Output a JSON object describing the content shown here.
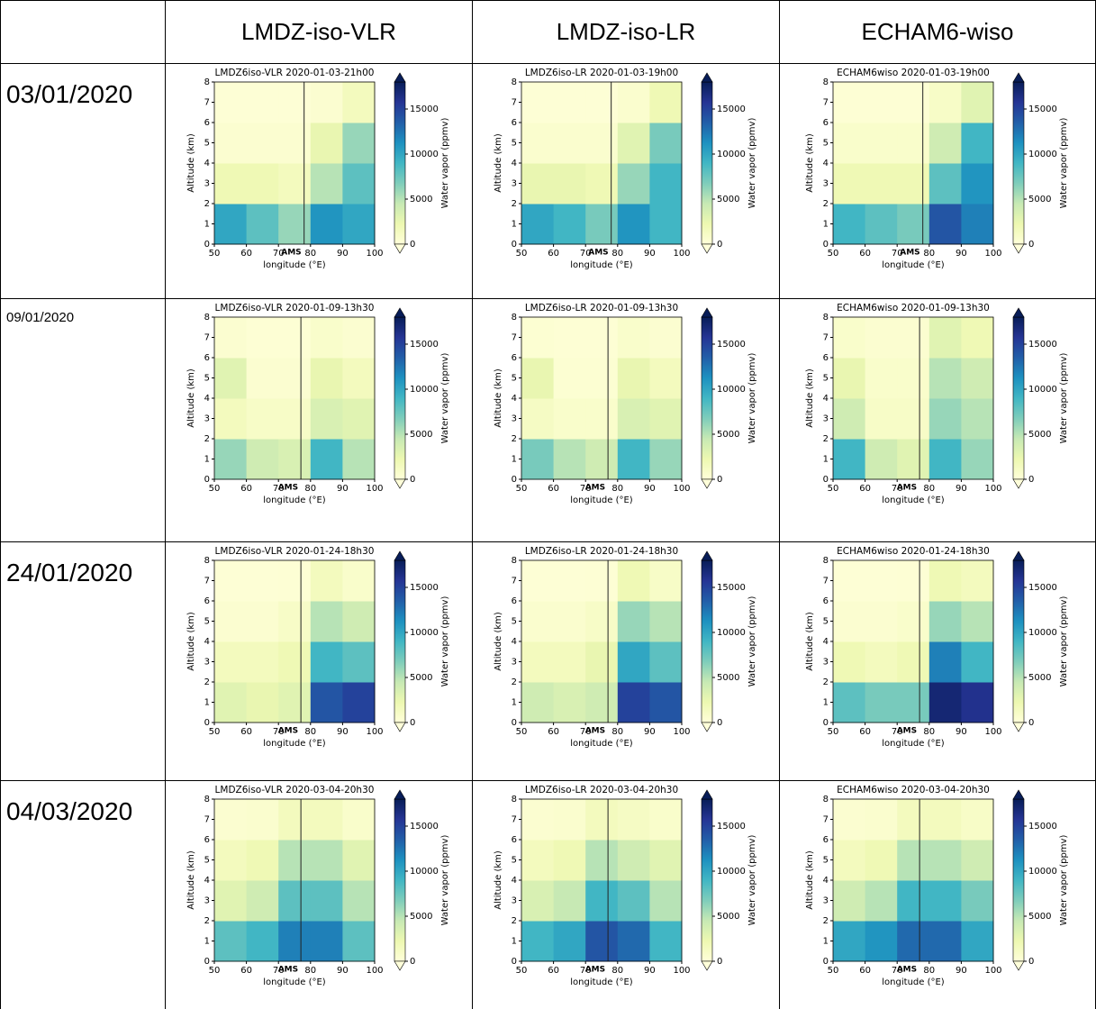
{
  "table": {
    "column_headers": [
      "LMDZ-iso-VLR",
      "LMDZ-iso-LR",
      "ECHAM6-wiso"
    ],
    "row_labels": [
      "03/01/2020",
      "09/01/2020",
      "24/01/2020",
      "04/03/2020"
    ]
  },
  "chart_data": [
    {
      "type": "heatmap",
      "title": "LMDZ6iso-VLR 2020-01-03-21h00",
      "xlabel": "longitude (°E)",
      "ylabel": "Altitude (km)",
      "colorbar_label": "Water vapor (ppmv)",
      "colormap": "YlGnBu",
      "annotation": "AMS",
      "annotation_x": 78,
      "xlim": [
        50,
        100
      ],
      "xticks": [
        50,
        60,
        70,
        80,
        90,
        100
      ],
      "ylim": [
        0,
        8
      ],
      "yticks": [
        0,
        1,
        2,
        3,
        4,
        5,
        6,
        7,
        8
      ],
      "clim": [
        0,
        18000
      ],
      "cticks": [
        0,
        5000,
        10000,
        15000
      ],
      "z": [
        [
          10000,
          8000,
          6000,
          11000,
          10000
        ],
        [
          2000,
          2000,
          1500,
          5000,
          8000
        ],
        [
          500,
          500,
          500,
          2500,
          6000
        ],
        [
          200,
          200,
          200,
          500,
          1500
        ]
      ]
    },
    {
      "type": "heatmap",
      "title": "LMDZ6iso-LR 2020-01-03-19h00",
      "xlabel": "longitude (°E)",
      "ylabel": "Altitude (km)",
      "colorbar_label": "Water vapor (ppmv)",
      "colormap": "YlGnBu",
      "annotation": "AMS",
      "annotation_x": 78,
      "xlim": [
        50,
        100
      ],
      "xticks": [
        50,
        60,
        70,
        80,
        90,
        100
      ],
      "ylim": [
        0,
        8
      ],
      "yticks": [
        0,
        1,
        2,
        3,
        4,
        5,
        6,
        7,
        8
      ],
      "clim": [
        0,
        18000
      ],
      "cticks": [
        0,
        5000,
        10000,
        15000
      ],
      "z": [
        [
          10000,
          9000,
          7000,
          11000,
          9000
        ],
        [
          2500,
          2500,
          2000,
          6000,
          9000
        ],
        [
          600,
          600,
          600,
          3000,
          7000
        ],
        [
          200,
          200,
          200,
          600,
          2000
        ]
      ]
    },
    {
      "type": "heatmap",
      "title": "ECHAM6wiso 2020-01-03-19h00",
      "xlabel": "longitude (°E)",
      "ylabel": "Altitude (km)",
      "colorbar_label": "Water vapor (ppmv)",
      "colormap": "YlGnBu",
      "annotation": "AMS",
      "annotation_x": 78,
      "xlim": [
        50,
        100
      ],
      "xticks": [
        50,
        60,
        70,
        80,
        90,
        100
      ],
      "ylim": [
        0,
        8
      ],
      "yticks": [
        0,
        1,
        2,
        3,
        4,
        5,
        6,
        7,
        8
      ],
      "clim": [
        0,
        18000
      ],
      "cticks": [
        0,
        5000,
        10000,
        15000
      ],
      "z": [
        [
          9000,
          8000,
          7000,
          14000,
          12000
        ],
        [
          2000,
          2000,
          2000,
          8000,
          11000
        ],
        [
          800,
          800,
          800,
          4000,
          9000
        ],
        [
          300,
          300,
          300,
          1000,
          3000
        ]
      ]
    },
    {
      "type": "heatmap",
      "title": "LMDZ6iso-VLR 2020-01-09-13h30",
      "xlabel": "longitude (°E)",
      "ylabel": "Altitude (km)",
      "colorbar_label": "Water vapor (ppmv)",
      "colormap": "YlGnBu",
      "annotation": "AMS",
      "annotation_x": 77,
      "xlim": [
        50,
        100
      ],
      "xticks": [
        50,
        60,
        70,
        80,
        90,
        100
      ],
      "ylim": [
        0,
        8
      ],
      "yticks": [
        0,
        1,
        2,
        3,
        4,
        5,
        6,
        7,
        8
      ],
      "clim": [
        0,
        18000
      ],
      "cticks": [
        0,
        5000,
        10000,
        15000
      ],
      "z": [
        [
          6000,
          4000,
          3500,
          9000,
          5000
        ],
        [
          1500,
          1000,
          1000,
          3500,
          3000
        ],
        [
          3000,
          500,
          500,
          2500,
          1500
        ],
        [
          500,
          300,
          300,
          800,
          500
        ]
      ]
    },
    {
      "type": "heatmap",
      "title": "LMDZ6iso-LR 2020-01-09-13h30",
      "xlabel": "longitude (°E)",
      "ylabel": "Altitude (km)",
      "colorbar_label": "Water vapor (ppmv)",
      "colormap": "YlGnBu",
      "annotation": "AMS",
      "annotation_x": 77,
      "xlim": [
        50,
        100
      ],
      "xticks": [
        50,
        60,
        70,
        80,
        90,
        100
      ],
      "ylim": [
        0,
        8
      ],
      "yticks": [
        0,
        1,
        2,
        3,
        4,
        5,
        6,
        7,
        8
      ],
      "clim": [
        0,
        18000
      ],
      "cticks": [
        0,
        5000,
        10000,
        15000
      ],
      "z": [
        [
          7000,
          5000,
          4000,
          9000,
          6000
        ],
        [
          1200,
          800,
          800,
          3500,
          3000
        ],
        [
          2500,
          400,
          400,
          2500,
          1500
        ],
        [
          400,
          300,
          300,
          800,
          500
        ]
      ]
    },
    {
      "type": "heatmap",
      "title": "ECHAM6wiso 2020-01-09-13h30",
      "xlabel": "longitude (°E)",
      "ylabel": "Altitude (km)",
      "colorbar_label": "Water vapor (ppmv)",
      "colormap": "YlGnBu",
      "annotation": "AMS",
      "annotation_x": 77,
      "xlim": [
        50,
        100
      ],
      "xticks": [
        50,
        60,
        70,
        80,
        90,
        100
      ],
      "ylim": [
        0,
        8
      ],
      "yticks": [
        0,
        1,
        2,
        3,
        4,
        5,
        6,
        7,
        8
      ],
      "clim": [
        0,
        18000
      ],
      "cticks": [
        0,
        5000,
        10000,
        15000
      ],
      "z": [
        [
          9000,
          4000,
          3000,
          9000,
          6000
        ],
        [
          4000,
          1000,
          1000,
          6000,
          5000
        ],
        [
          2500,
          800,
          800,
          5000,
          4000
        ],
        [
          800,
          500,
          500,
          3000,
          2000
        ]
      ]
    },
    {
      "type": "heatmap",
      "title": "LMDZ6iso-VLR 2020-01-24-18h30",
      "xlabel": "longitude (°E)",
      "ylabel": "Altitude (km)",
      "colorbar_label": "Water vapor (ppmv)",
      "colormap": "YlGnBu",
      "annotation": "AMS",
      "annotation_x": 77,
      "xlim": [
        50,
        100
      ],
      "xticks": [
        50,
        60,
        70,
        80,
        90,
        100
      ],
      "ylim": [
        0,
        8
      ],
      "yticks": [
        0,
        1,
        2,
        3,
        4,
        5,
        6,
        7,
        8
      ],
      "clim": [
        0,
        18000
      ],
      "cticks": [
        0,
        5000,
        10000,
        15000
      ],
      "z": [
        [
          3000,
          2500,
          3000,
          14000,
          15000
        ],
        [
          1500,
          1500,
          2000,
          9000,
          8000
        ],
        [
          500,
          500,
          1000,
          5000,
          4000
        ],
        [
          200,
          200,
          300,
          1500,
          800
        ]
      ]
    },
    {
      "type": "heatmap",
      "title": "LMDZ6iso-LR 2020-01-24-18h30",
      "xlabel": "longitude (°E)",
      "ylabel": "Altitude (km)",
      "colorbar_label": "Water vapor (ppmv)",
      "colormap": "YlGnBu",
      "annotation": "AMS",
      "annotation_x": 77,
      "xlim": [
        50,
        100
      ],
      "xticks": [
        50,
        60,
        70,
        80,
        90,
        100
      ],
      "ylim": [
        0,
        8
      ],
      "yticks": [
        0,
        1,
        2,
        3,
        4,
        5,
        6,
        7,
        8
      ],
      "clim": [
        0,
        18000
      ],
      "cticks": [
        0,
        5000,
        10000,
        15000
      ],
      "z": [
        [
          4000,
          3500,
          4000,
          15000,
          14000
        ],
        [
          1500,
          1500,
          2500,
          10000,
          8000
        ],
        [
          600,
          600,
          1000,
          6000,
          5000
        ],
        [
          200,
          200,
          300,
          2000,
          1000
        ]
      ]
    },
    {
      "type": "heatmap",
      "title": "ECHAM6wiso 2020-01-24-18h30",
      "xlabel": "longitude (°E)",
      "ylabel": "Altitude (km)",
      "colorbar_label": "Water vapor (ppmv)",
      "colormap": "YlGnBu",
      "annotation": "AMS",
      "annotation_x": 77,
      "xlim": [
        50,
        100
      ],
      "xticks": [
        50,
        60,
        70,
        80,
        90,
        100
      ],
      "ylim": [
        0,
        8
      ],
      "yticks": [
        0,
        1,
        2,
        3,
        4,
        5,
        6,
        7,
        8
      ],
      "clim": [
        0,
        18000
      ],
      "cticks": [
        0,
        5000,
        10000,
        15000
      ],
      "z": [
        [
          8000,
          7000,
          7000,
          17000,
          16000
        ],
        [
          2000,
          1500,
          2000,
          12000,
          9000
        ],
        [
          500,
          500,
          800,
          6000,
          5000
        ],
        [
          200,
          200,
          300,
          2000,
          1500
        ]
      ]
    },
    {
      "type": "heatmap",
      "title": "LMDZ6iso-VLR 2020-03-04-20h30",
      "xlabel": "longitude (°E)",
      "ylabel": "Altitude (km)",
      "colorbar_label": "Water vapor (ppmv)",
      "colormap": "YlGnBu",
      "annotation": "AMS",
      "annotation_x": 77,
      "xlim": [
        50,
        100
      ],
      "xticks": [
        50,
        60,
        70,
        80,
        90,
        100
      ],
      "ylim": [
        0,
        8
      ],
      "yticks": [
        0,
        1,
        2,
        3,
        4,
        5,
        6,
        7,
        8
      ],
      "clim": [
        0,
        18000
      ],
      "cticks": [
        0,
        5000,
        10000,
        15000
      ],
      "z": [
        [
          8000,
          9000,
          12000,
          12000,
          8000
        ],
        [
          3000,
          4000,
          8000,
          8000,
          5000
        ],
        [
          1500,
          2000,
          5000,
          5000,
          3000
        ],
        [
          500,
          600,
          1500,
          1500,
          800
        ]
      ]
    },
    {
      "type": "heatmap",
      "title": "LMDZ6iso-LR 2020-03-04-20h30",
      "xlabel": "longitude (°E)",
      "ylabel": "Altitude (km)",
      "colorbar_label": "Water vapor (ppmv)",
      "colormap": "YlGnBu",
      "annotation": "AMS",
      "annotation_x": 77,
      "xlim": [
        50,
        100
      ],
      "xticks": [
        50,
        60,
        70,
        80,
        90,
        100
      ],
      "ylim": [
        0,
        8
      ],
      "yticks": [
        0,
        1,
        2,
        3,
        4,
        5,
        6,
        7,
        8
      ],
      "clim": [
        0,
        18000
      ],
      "cticks": [
        0,
        5000,
        10000,
        15000
      ],
      "z": [
        [
          9000,
          10000,
          14000,
          13000,
          9000
        ],
        [
          3500,
          4500,
          9000,
          8000,
          5000
        ],
        [
          1500,
          2000,
          5000,
          4000,
          3000
        ],
        [
          500,
          600,
          1500,
          1200,
          800
        ]
      ]
    },
    {
      "type": "heatmap",
      "title": "ECHAM6wiso 2020-03-04-20h30",
      "xlabel": "longitude (°E)",
      "ylabel": "Altitude (km)",
      "colorbar_label": "Water vapor (ppmv)",
      "colormap": "YlGnBu",
      "annotation": "AMS",
      "annotation_x": 77,
      "xlim": [
        50,
        100
      ],
      "xticks": [
        50,
        60,
        70,
        80,
        90,
        100
      ],
      "ylim": [
        0,
        8
      ],
      "yticks": [
        0,
        1,
        2,
        3,
        4,
        5,
        6,
        7,
        8
      ],
      "clim": [
        0,
        18000
      ],
      "cticks": [
        0,
        5000,
        10000,
        15000
      ],
      "z": [
        [
          10000,
          11000,
          13000,
          13000,
          10000
        ],
        [
          4000,
          5000,
          9000,
          9000,
          7000
        ],
        [
          1500,
          2000,
          5000,
          5000,
          4000
        ],
        [
          500,
          600,
          1500,
          1500,
          1000
        ]
      ]
    }
  ]
}
